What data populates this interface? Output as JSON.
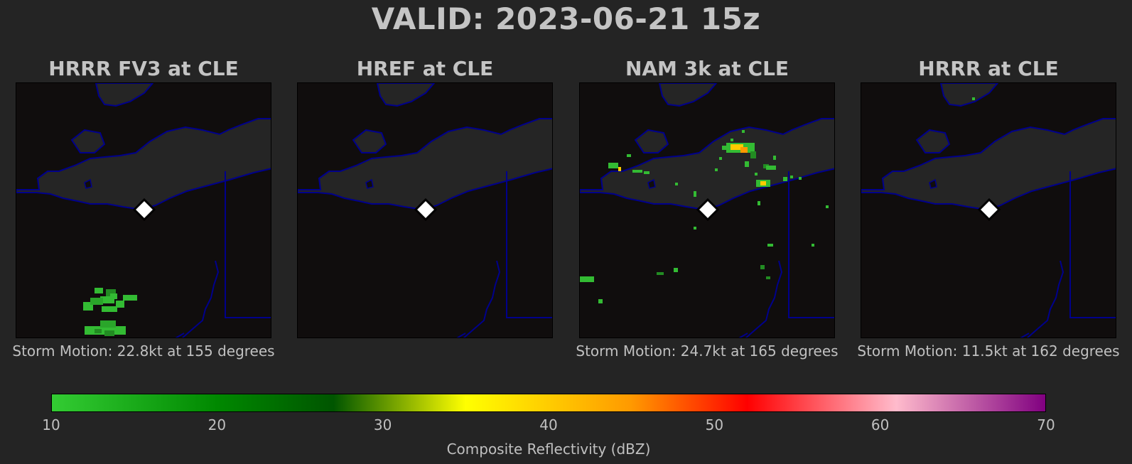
{
  "title": "VALID: 2023-06-21 15z",
  "panels": [
    {
      "title": "HRRR FV3 at CLE",
      "storm_motion": "Storm Motion: 22.8kt at 155 degrees"
    },
    {
      "title": "HREF at CLE",
      "storm_motion": ""
    },
    {
      "title": "NAM 3k at CLE",
      "storm_motion": "Storm Motion: 24.7kt at 165 degrees"
    },
    {
      "title": "HRRR at CLE",
      "storm_motion": "Storm Motion: 11.5kt at 162 degrees"
    }
  ],
  "colorbar": {
    "label": "Composite Reflectivity (dBZ)",
    "ticks": [
      "10",
      "20",
      "30",
      "40",
      "50",
      "60",
      "70"
    ],
    "min": 10,
    "max": 70,
    "stops": [
      {
        "value": 10,
        "color": "#33cc33"
      },
      {
        "value": 20,
        "color": "#008800"
      },
      {
        "value": 27,
        "color": "#005500"
      },
      {
        "value": 35,
        "color": "#ffff00"
      },
      {
        "value": 45,
        "color": "#ff9900"
      },
      {
        "value": 52,
        "color": "#ff0000"
      },
      {
        "value": 61,
        "color": "#ffbbcc"
      },
      {
        "value": 70,
        "color": "#800080"
      }
    ]
  },
  "colors": {
    "background": "#242424",
    "map_land": "#100d0d",
    "lake": "#252525",
    "border": "#00008b",
    "station_marker": "#ffffff"
  },
  "station_marker_icon": "diamond-icon"
}
